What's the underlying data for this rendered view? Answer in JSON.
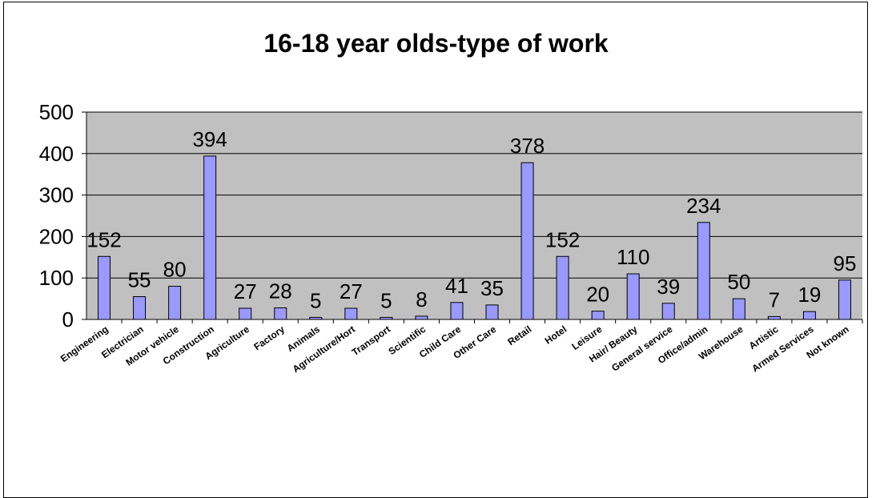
{
  "chart_data": {
    "type": "bar",
    "title": "16-18 year olds-type of work",
    "xlabel": "",
    "ylabel": "",
    "ylim": [
      0,
      500
    ],
    "yticks": [
      0,
      100,
      200,
      300,
      400,
      500
    ],
    "grid": true,
    "legend": "none",
    "categories": [
      "Engineering",
      "Electrician",
      "Motor vehicle",
      "Construction",
      "Agriculture",
      "Factory",
      "Animals",
      "Agriculture/Hort",
      "Transport",
      "Scientific",
      "Child Care",
      "Other Care",
      "Retail",
      "Hotel",
      "Leisure",
      "Hair/ Beauty",
      "General service",
      "Office/admin",
      "Warehouse",
      "Artistic",
      "Armed Services",
      "Not known"
    ],
    "values": [
      152,
      55,
      80,
      394,
      27,
      28,
      5,
      27,
      5,
      8,
      41,
      35,
      378,
      152,
      20,
      110,
      39,
      234,
      50,
      7,
      19,
      95
    ],
    "colors": {
      "bar": "#9999ff",
      "plot_bg": "#c0c0c0",
      "gridline": "#000000"
    }
  }
}
